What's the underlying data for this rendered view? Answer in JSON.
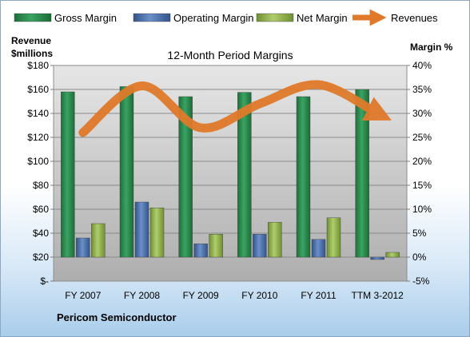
{
  "chart_data": {
    "type": "bar",
    "title": "12-Month Period Margins",
    "company": "Pericom Semiconductor",
    "ylabel_left": [
      "Revenue",
      "$millions"
    ],
    "ylabel_right": "Margin %",
    "categories": [
      "FY 2007",
      "FY 2008",
      "FY 2009",
      "FY 2010",
      "FY 2011",
      "TTM 3-2012"
    ],
    "left_axis": {
      "min": 0,
      "max": 180,
      "step": 20,
      "tick_labels": [
        "$-",
        "$20",
        "$40",
        "$60",
        "$80",
        "$100",
        "$120",
        "$140",
        "$160",
        "$180"
      ]
    },
    "right_axis": {
      "min": -5,
      "max": 40,
      "step": 5,
      "tick_labels": [
        "-5%",
        "0%",
        "5%",
        "10%",
        "15%",
        "20%",
        "25%",
        "30%",
        "35%",
        "40%"
      ]
    },
    "series": [
      {
        "name": "Gross Margin",
        "axis": "right",
        "color": "#2e8b4e",
        "values": [
          34.5,
          35.6,
          33.5,
          34.4,
          33.5,
          35.0
        ]
      },
      {
        "name": "Operating Margin",
        "axis": "right",
        "color": "#4a6fad",
        "values": [
          4.0,
          11.5,
          2.8,
          4.8,
          3.7,
          -0.5
        ]
      },
      {
        "name": "Net Margin",
        "axis": "right",
        "color": "#8fb04a",
        "values": [
          7.0,
          10.3,
          4.8,
          7.3,
          8.2,
          1.0
        ]
      },
      {
        "name": "Revenues",
        "axis": "left",
        "type": "line",
        "color": "#e07a2a",
        "values": [
          124,
          163,
          128,
          148,
          164,
          140
        ]
      }
    ],
    "legend_position": "top",
    "grid": true
  }
}
